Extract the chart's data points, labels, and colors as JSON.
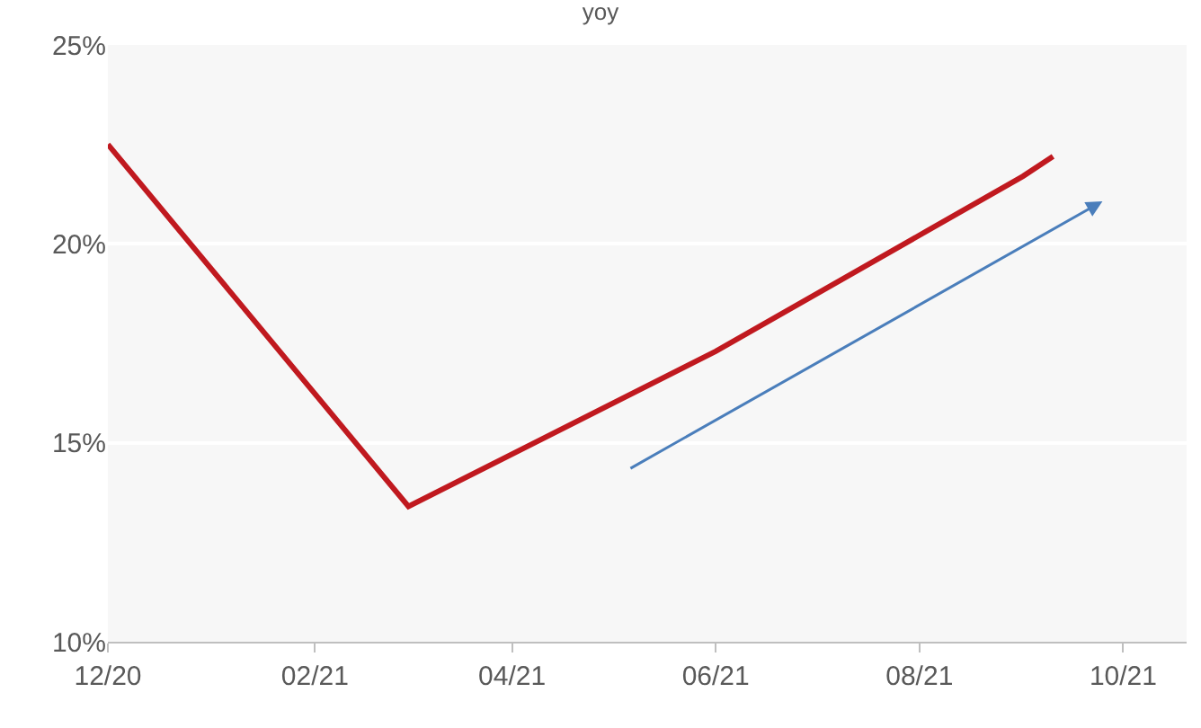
{
  "chart_data": {
    "type": "line",
    "title": "yoy",
    "x": [
      "2020-12-01",
      "2021-03-01",
      "2021-06-01",
      "2021-09-01",
      "2021-09-10"
    ],
    "series": [
      {
        "color": "#c0191f",
        "values": [
          22.5,
          13.4,
          17.3,
          21.7,
          22.2
        ]
      }
    ],
    "xlim": [
      "2020-12-01",
      "2021-10-20"
    ],
    "xticks": [
      {
        "value": "2020-12-01",
        "label": "12/20"
      },
      {
        "value": "2021-02-01",
        "label": "02/21"
      },
      {
        "value": "2021-04-01",
        "label": "04/21"
      },
      {
        "value": "2021-06-01",
        "label": "06/21"
      },
      {
        "value": "2021-08-01",
        "label": "08/21"
      },
      {
        "value": "2021-10-01",
        "label": "10/21"
      }
    ],
    "ylim": [
      10,
      25
    ],
    "yticks": [
      {
        "value": 10,
        "label": "10%"
      },
      {
        "value": 15,
        "label": "15%"
      },
      {
        "value": 20,
        "label": "20%"
      },
      {
        "value": 25,
        "label": "25%"
      }
    ],
    "grid": "y",
    "marker": "none",
    "line_style": "solid"
  }
}
